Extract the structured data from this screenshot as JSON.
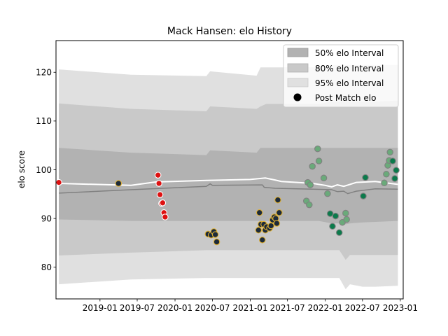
{
  "chart_data": {
    "type": "scatter",
    "title": "Mack Hansen: elo History",
    "xlabel": "",
    "ylabel": "elo score",
    "xlim": [
      "2018-06-01",
      "2023-01-15"
    ],
    "ylim": [
      73.5,
      126.5
    ],
    "xticks": [
      "2019-01",
      "2019-07",
      "2020-01",
      "2020-07",
      "2021-01",
      "2021-07",
      "2022-01",
      "2022-07",
      "2023-01"
    ],
    "yticks": [
      80,
      90,
      100,
      110,
      120
    ],
    "grid": false,
    "legend_position": "top-right",
    "legend": [
      {
        "label": "50% elo Interval",
        "kind": "band50"
      },
      {
        "label": "80% elo Interval",
        "kind": "band80"
      },
      {
        "label": "95% elo Interval",
        "kind": "band95"
      },
      {
        "label": "Post Match elo",
        "kind": "marker"
      }
    ],
    "colors": {
      "band50": "#b2b2b2",
      "band80": "#c9c9c9",
      "band95": "#e0e0e0",
      "median_line": "#808080",
      "mean_line": "#ffffff",
      "red": "#dd1111",
      "navy": "#1c2a3a",
      "gold_edge": "#e0b030",
      "light_green": "#6aaa7a",
      "dark_green": "#0b7a4b"
    },
    "band_x": [
      "2018-06-15",
      "2019-06-01",
      "2020-06-01",
      "2020-06-20",
      "2021-02-01",
      "2021-02-20",
      "2021-03-20",
      "2021-06-01",
      "2021-10-01",
      "2021-12-01",
      "2022-02-01",
      "2022-03-10",
      "2022-04-10",
      "2022-05-01",
      "2022-07-01",
      "2022-09-01",
      "2022-12-20"
    ],
    "band95_upper": [
      120.6,
      119.5,
      119.2,
      120.2,
      119.3,
      121.0,
      121.0,
      121.0,
      121.0,
      121.0,
      121.5,
      121.5,
      121.5,
      121.5,
      121.5,
      121.5,
      121.5
    ],
    "band95_lower": [
      76.5,
      77.5,
      77.8,
      77.8,
      77.8,
      77.8,
      77.8,
      77.8,
      77.8,
      77.8,
      77.8,
      77.8,
      75.5,
      76.5,
      76.0,
      76.0,
      76.2
    ],
    "band80_upper": [
      113.6,
      112.5,
      112.0,
      113.0,
      112.5,
      113.0,
      113.5,
      113.5,
      113.5,
      113.5,
      114.0,
      114.0,
      114.0,
      114.0,
      114.0,
      114.0,
      114.2
    ],
    "band80_lower": [
      82.4,
      83.0,
      83.5,
      83.5,
      83.5,
      83.5,
      83.5,
      83.5,
      83.5,
      83.5,
      83.5,
      83.5,
      81.5,
      82.5,
      82.5,
      82.5,
      82.5
    ],
    "band50_upper": [
      104.5,
      103.5,
      103.0,
      104.0,
      103.5,
      104.5,
      104.5,
      104.5,
      104.5,
      104.5,
      104.5,
      104.5,
      104.5,
      104.5,
      104.5,
      104.5,
      104.5
    ],
    "band50_lower": [
      89.8,
      89.5,
      89.5,
      89.5,
      89.5,
      89.5,
      89.5,
      89.5,
      89.5,
      89.5,
      89.0,
      89.0,
      88.8,
      89.0,
      89.2,
      89.3,
      89.5
    ],
    "median_x": [
      "2018-06-15",
      "2019-06-01",
      "2020-06-01",
      "2020-06-20",
      "2020-07-01",
      "2021-03-01",
      "2021-03-10",
      "2021-05-01",
      "2021-11-01",
      "2022-02-01",
      "2022-03-01",
      "2022-04-01",
      "2022-04-20",
      "2022-06-01",
      "2022-09-01",
      "2022-12-20"
    ],
    "median_y": [
      95.2,
      95.9,
      96.6,
      97.1,
      96.8,
      96.9,
      96.4,
      96.2,
      96.0,
      95.9,
      95.5,
      95.6,
      95.1,
      95.6,
      96.1,
      96.0
    ],
    "mean_x": [
      "2018-06-15",
      "2019-06-01",
      "2019-10-01",
      "2020-06-01",
      "2021-01-01",
      "2021-03-15",
      "2021-05-01",
      "2021-06-01",
      "2021-11-01",
      "2022-01-01",
      "2022-02-01",
      "2022-03-01",
      "2022-04-01",
      "2022-06-01",
      "2022-09-01",
      "2022-12-20"
    ],
    "mean_y": [
      97.2,
      96.8,
      97.5,
      97.8,
      98.0,
      98.3,
      97.9,
      97.6,
      97.2,
      96.8,
      96.5,
      96.9,
      96.6,
      97.4,
      97.6,
      97.0
    ],
    "series": [
      {
        "color_key": "red",
        "edge_key": "mean_line",
        "points": [
          {
            "x": "2018-06-15",
            "y": 97.4
          },
          {
            "x": "2019-10-10",
            "y": 98.9
          },
          {
            "x": "2019-10-15",
            "y": 97.2
          },
          {
            "x": "2019-10-20",
            "y": 94.9
          },
          {
            "x": "2019-10-28",
            "y": 93.1
          },
          {
            "x": "2019-11-02",
            "y": 93.2
          },
          {
            "x": "2019-11-08",
            "y": 91.2
          },
          {
            "x": "2019-11-14",
            "y": 90.3
          }
        ]
      },
      {
        "color_key": "navy",
        "edge_key": "gold_edge",
        "points": [
          {
            "x": "2019-04-01",
            "y": 97.2
          },
          {
            "x": "2020-06-10",
            "y": 86.8
          },
          {
            "x": "2020-06-25",
            "y": 86.6
          },
          {
            "x": "2020-07-08",
            "y": 87.3
          },
          {
            "x": "2020-07-15",
            "y": 86.7
          },
          {
            "x": "2020-07-22",
            "y": 85.2
          },
          {
            "x": "2021-02-10",
            "y": 87.6
          },
          {
            "x": "2021-02-15",
            "y": 91.2
          },
          {
            "x": "2021-02-22",
            "y": 88.8
          },
          {
            "x": "2021-03-01",
            "y": 85.6
          },
          {
            "x": "2021-03-08",
            "y": 88.8
          },
          {
            "x": "2021-03-15",
            "y": 87.6
          },
          {
            "x": "2021-03-22",
            "y": 88.3
          },
          {
            "x": "2021-04-05",
            "y": 88.0
          },
          {
            "x": "2021-04-12",
            "y": 88.5
          },
          {
            "x": "2021-04-20",
            "y": 89.7
          },
          {
            "x": "2021-04-28",
            "y": 90.3
          },
          {
            "x": "2021-05-05",
            "y": 90.0
          },
          {
            "x": "2021-05-10",
            "y": 89.0
          },
          {
            "x": "2021-05-15",
            "y": 93.8
          },
          {
            "x": "2021-05-22",
            "y": 91.2
          }
        ]
      },
      {
        "color_key": "light_green",
        "edge_key": "median_line",
        "points": [
          {
            "x": "2021-10-01",
            "y": 93.6
          },
          {
            "x": "2021-10-08",
            "y": 97.4
          },
          {
            "x": "2021-10-15",
            "y": 92.8
          },
          {
            "x": "2021-10-20",
            "y": 96.9
          },
          {
            "x": "2021-10-30",
            "y": 100.7
          },
          {
            "x": "2021-11-25",
            "y": 104.3
          },
          {
            "x": "2021-12-01",
            "y": 101.8
          },
          {
            "x": "2021-12-25",
            "y": 98.3
          },
          {
            "x": "2022-01-12",
            "y": 95.1
          },
          {
            "x": "2022-03-25",
            "y": 89.2
          },
          {
            "x": "2022-04-10",
            "y": 91.1
          },
          {
            "x": "2022-04-15",
            "y": 89.8
          },
          {
            "x": "2022-10-15",
            "y": 97.3
          },
          {
            "x": "2022-10-25",
            "y": 99.1
          },
          {
            "x": "2022-11-01",
            "y": 100.9
          },
          {
            "x": "2022-11-08",
            "y": 101.9
          },
          {
            "x": "2022-11-12",
            "y": 103.6
          }
        ]
      },
      {
        "color_key": "dark_green",
        "edge_key": "median_line",
        "points": [
          {
            "x": "2022-01-25",
            "y": 91.0
          },
          {
            "x": "2022-02-05",
            "y": 88.4
          },
          {
            "x": "2022-02-20",
            "y": 90.5
          },
          {
            "x": "2022-03-10",
            "y": 87.1
          },
          {
            "x": "2022-07-05",
            "y": 94.6
          },
          {
            "x": "2022-07-15",
            "y": 98.4
          },
          {
            "x": "2022-11-25",
            "y": 101.8
          },
          {
            "x": "2022-12-05",
            "y": 98.2
          },
          {
            "x": "2022-12-12",
            "y": 99.9
          }
        ]
      }
    ]
  }
}
